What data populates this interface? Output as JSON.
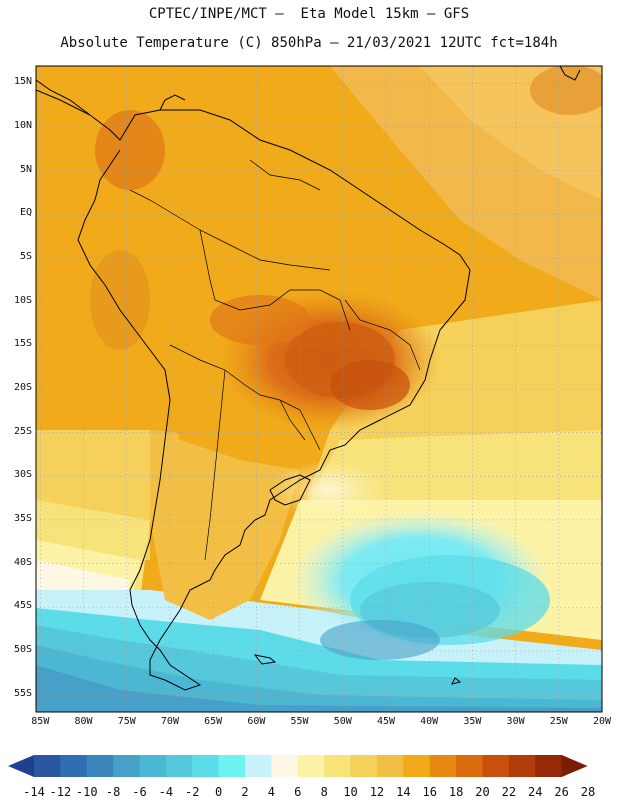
{
  "header": {
    "title_line1": "CPTEC/INPE/MCT –  Eta Model 15km – GFS",
    "title_line2": "Absolute Temperature (C) 850hPa – 21/03/2021 12UTC fct=184h"
  },
  "map": {
    "lat_labels": [
      "15N",
      "10N",
      "5N",
      "EQ",
      "5S",
      "10S",
      "15S",
      "20S",
      "25S",
      "30S",
      "35S",
      "40S",
      "45S",
      "50S",
      "55S"
    ],
    "lon_labels": [
      "85W",
      "80W",
      "75W",
      "70W",
      "65W",
      "60W",
      "55W",
      "50W",
      "45W",
      "40W",
      "35W",
      "30W",
      "25W",
      "20W"
    ],
    "lat_range": [
      17,
      -57
    ],
    "lon_range": [
      -85.5,
      -20
    ]
  },
  "colorbar": {
    "labels": [
      "-14",
      "-12",
      "-10",
      "-8",
      "-6",
      "-4",
      "-2",
      "0",
      "2",
      "4",
      "6",
      "8",
      "10",
      "12",
      "14",
      "16",
      "18",
      "20",
      "22",
      "24",
      "26",
      "28"
    ],
    "colors": [
      "#1f3f8f",
      "#2a58a0",
      "#2f6eb0",
      "#3a86bd",
      "#46a0c8",
      "#4cb7d2",
      "#55c8dc",
      "#5cdce8",
      "#6ef2f2",
      "#c8f2fa",
      "#fdf7e4",
      "#fdf3a6",
      "#f8e27a",
      "#f5d05a",
      "#f2bf44",
      "#f0aa1a",
      "#e88a12",
      "#dc6a0e",
      "#c8500c",
      "#b03c0a",
      "#962a08",
      "#7a1c06"
    ]
  }
}
